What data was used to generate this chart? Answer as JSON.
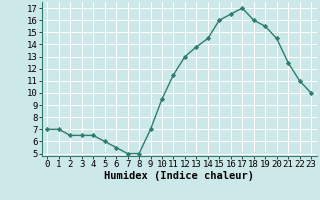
{
  "x": [
    0,
    1,
    2,
    3,
    4,
    5,
    6,
    7,
    8,
    9,
    10,
    11,
    12,
    13,
    14,
    15,
    16,
    17,
    18,
    19,
    20,
    21,
    22,
    23
  ],
  "y": [
    7,
    7,
    6.5,
    6.5,
    6.5,
    6,
    5.5,
    5,
    5,
    7,
    9.5,
    11.5,
    13,
    13.8,
    14.5,
    16,
    16.5,
    17,
    16,
    15.5,
    14.5,
    12.5,
    11,
    10
  ],
  "line_color": "#2e7d6e",
  "marker": "D",
  "marker_size": 2.2,
  "bg_color": "#cde8e8",
  "grid_color": "#ffffff",
  "xlabel": "Humidex (Indice chaleur)",
  "ylim": [
    4.8,
    17.5
  ],
  "xlim": [
    -0.5,
    23.5
  ],
  "yticks": [
    5,
    6,
    7,
    8,
    9,
    10,
    11,
    12,
    13,
    14,
    15,
    16,
    17
  ],
  "xticks": [
    0,
    1,
    2,
    3,
    4,
    5,
    6,
    7,
    8,
    9,
    10,
    11,
    12,
    13,
    14,
    15,
    16,
    17,
    18,
    19,
    20,
    21,
    22,
    23
  ],
  "xlabel_fontsize": 7.5,
  "tick_fontsize": 6.5,
  "linewidth": 1.0
}
